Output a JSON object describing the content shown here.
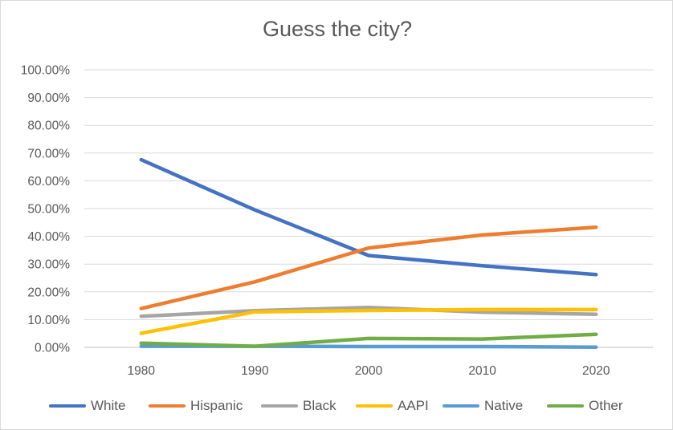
{
  "chart_data": {
    "type": "line",
    "title": "Guess the city?",
    "xlabel": "",
    "ylabel": "",
    "x": [
      "1980",
      "1990",
      "2000",
      "2010",
      "2020"
    ],
    "ylim": [
      0,
      100
    ],
    "yticks": [
      "0.00%",
      "10.00%",
      "20.00%",
      "30.00%",
      "40.00%",
      "50.00%",
      "60.00%",
      "70.00%",
      "80.00%",
      "90.00%",
      "100.00%"
    ],
    "grid": true,
    "legend_position": "bottom",
    "series": [
      {
        "name": "White",
        "color": "#4472C4",
        "values": [
          67.6,
          49.5,
          33.1,
          29.4,
          26.2
        ]
      },
      {
        "name": "Hispanic",
        "color": "#ED7D31",
        "values": [
          14.0,
          23.6,
          35.8,
          40.5,
          43.3
        ]
      },
      {
        "name": "Black",
        "color": "#A5A5A5",
        "values": [
          11.2,
          13.2,
          14.4,
          12.7,
          11.9
        ]
      },
      {
        "name": "AAPI",
        "color": "#FFC000",
        "values": [
          5.1,
          12.8,
          13.3,
          13.6,
          13.6
        ]
      },
      {
        "name": "Native",
        "color": "#5B9BD5",
        "values": [
          0.4,
          0.4,
          0.3,
          0.3,
          0.1
        ]
      },
      {
        "name": "Other",
        "color": "#70AD47",
        "values": [
          1.5,
          0.4,
          3.2,
          3.0,
          4.7
        ]
      }
    ]
  }
}
